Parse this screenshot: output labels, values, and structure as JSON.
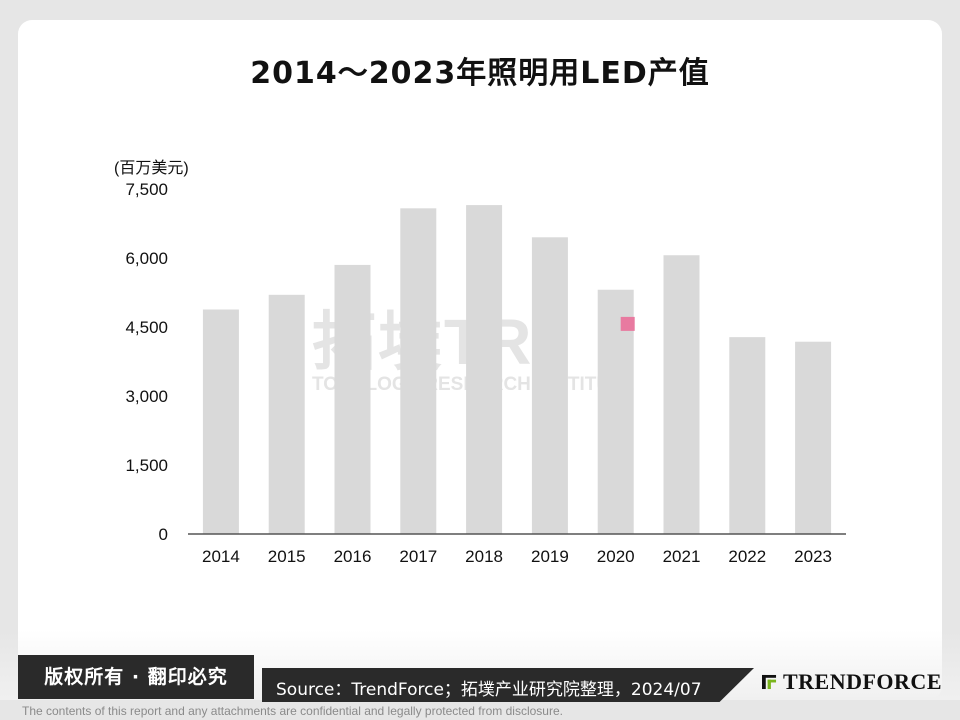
{
  "chart_data": {
    "type": "bar",
    "title": "2014～2023年照明用LED产值",
    "unit_label": "(百万美元)",
    "categories": [
      "2014",
      "2015",
      "2016",
      "2017",
      "2018",
      "2019",
      "2020",
      "2021",
      "2022",
      "2023"
    ],
    "values": [
      4880,
      5200,
      5850,
      7080,
      7150,
      6450,
      5310,
      6060,
      4280,
      4180
    ],
    "ylim": [
      0,
      7500
    ],
    "yticks": [
      0,
      1500,
      3000,
      4500,
      6000,
      7500
    ],
    "ytick_labels": [
      "0",
      "1,500",
      "3,000",
      "4,500",
      "6,000",
      "7,500"
    ],
    "bar_color": "#d9d9d9",
    "grid": false,
    "legend": "none"
  },
  "watermark": {
    "main": "拓墣TRI",
    "sub": "TOPOLOGY RESEARCH INSTITUTE"
  },
  "footer": {
    "copyright": "版权所有 · 翻印必究",
    "source": "Source：TrendForce；拓墣产业研究院整理，2024/07",
    "logo_text": "TRENDFORCE",
    "disclaimer": "The contents of this report and any attachments are confidential and legally protected from disclosure."
  },
  "colors": {
    "logo_green": "#7ab51d",
    "dark_bar": "#2a2a2a",
    "marker_pink": "#e87aa0"
  }
}
